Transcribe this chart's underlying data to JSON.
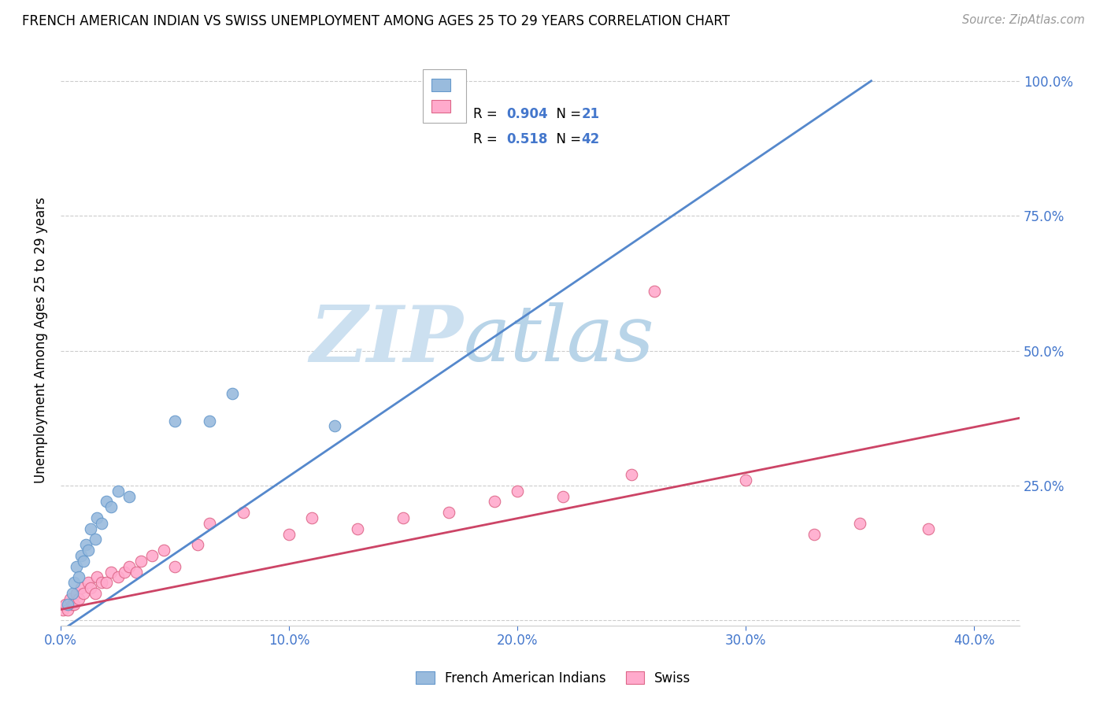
{
  "title": "FRENCH AMERICAN INDIAN VS SWISS UNEMPLOYMENT AMONG AGES 25 TO 29 YEARS CORRELATION CHART",
  "source": "Source: ZipAtlas.com",
  "ylabel": "Unemployment Among Ages 25 to 29 years",
  "xlim": [
    0.0,
    0.42
  ],
  "ylim": [
    -0.01,
    1.05
  ],
  "x_ticks": [
    0.0,
    0.1,
    0.2,
    0.3,
    0.4
  ],
  "x_tick_labels": [
    "0.0%",
    "10.0%",
    "20.0%",
    "30.0%",
    "40.0%"
  ],
  "y_ticks": [
    0.0,
    0.25,
    0.5,
    0.75,
    1.0
  ],
  "y_tick_labels": [
    "",
    "25.0%",
    "50.0%",
    "75.0%",
    "100.0%"
  ],
  "grid_color": "#cccccc",
  "background_color": "#ffffff",
  "watermark_zip": "ZIP",
  "watermark_atlas": "atlas",
  "watermark_color_zip": "#cce0f0",
  "watermark_color_atlas": "#b8d4e8",
  "blue_label": "French American Indians",
  "pink_label": "Swiss",
  "blue_R": 0.904,
  "blue_N": 21,
  "pink_R": 0.518,
  "pink_N": 42,
  "blue_line_color": "#5588cc",
  "pink_line_color": "#cc4466",
  "blue_dot_facecolor": "#99bbdd",
  "pink_dot_facecolor": "#ffaacc",
  "blue_dot_edge": "#6699cc",
  "pink_dot_edge": "#dd6688",
  "accent_color": "#4477cc",
  "blue_scatter_x": [
    0.003,
    0.005,
    0.006,
    0.007,
    0.008,
    0.009,
    0.01,
    0.011,
    0.012,
    0.013,
    0.015,
    0.016,
    0.018,
    0.02,
    0.022,
    0.025,
    0.03,
    0.05,
    0.065,
    0.075,
    0.12
  ],
  "blue_scatter_y": [
    0.03,
    0.05,
    0.07,
    0.1,
    0.08,
    0.12,
    0.11,
    0.14,
    0.13,
    0.17,
    0.15,
    0.19,
    0.18,
    0.22,
    0.21,
    0.24,
    0.23,
    0.37,
    0.37,
    0.42,
    0.36
  ],
  "pink_scatter_x": [
    0.001,
    0.002,
    0.003,
    0.004,
    0.005,
    0.006,
    0.007,
    0.008,
    0.009,
    0.01,
    0.012,
    0.013,
    0.015,
    0.016,
    0.018,
    0.02,
    0.022,
    0.025,
    0.028,
    0.03,
    0.033,
    0.035,
    0.04,
    0.045,
    0.05,
    0.06,
    0.065,
    0.08,
    0.1,
    0.11,
    0.13,
    0.15,
    0.17,
    0.19,
    0.2,
    0.22,
    0.25,
    0.26,
    0.3,
    0.33,
    0.35,
    0.38
  ],
  "pink_scatter_y": [
    0.02,
    0.03,
    0.02,
    0.04,
    0.03,
    0.03,
    0.05,
    0.04,
    0.06,
    0.05,
    0.07,
    0.06,
    0.05,
    0.08,
    0.07,
    0.07,
    0.09,
    0.08,
    0.09,
    0.1,
    0.09,
    0.11,
    0.12,
    0.13,
    0.1,
    0.14,
    0.18,
    0.2,
    0.16,
    0.19,
    0.17,
    0.19,
    0.2,
    0.22,
    0.24,
    0.23,
    0.27,
    0.61,
    0.26,
    0.16,
    0.18,
    0.17
  ],
  "blue_line_x0": 0.0,
  "blue_line_y0": -0.02,
  "blue_line_x1": 0.355,
  "blue_line_y1": 1.0,
  "pink_line_x0": 0.0,
  "pink_line_y0": 0.02,
  "pink_line_x1": 0.42,
  "pink_line_y1": 0.375
}
